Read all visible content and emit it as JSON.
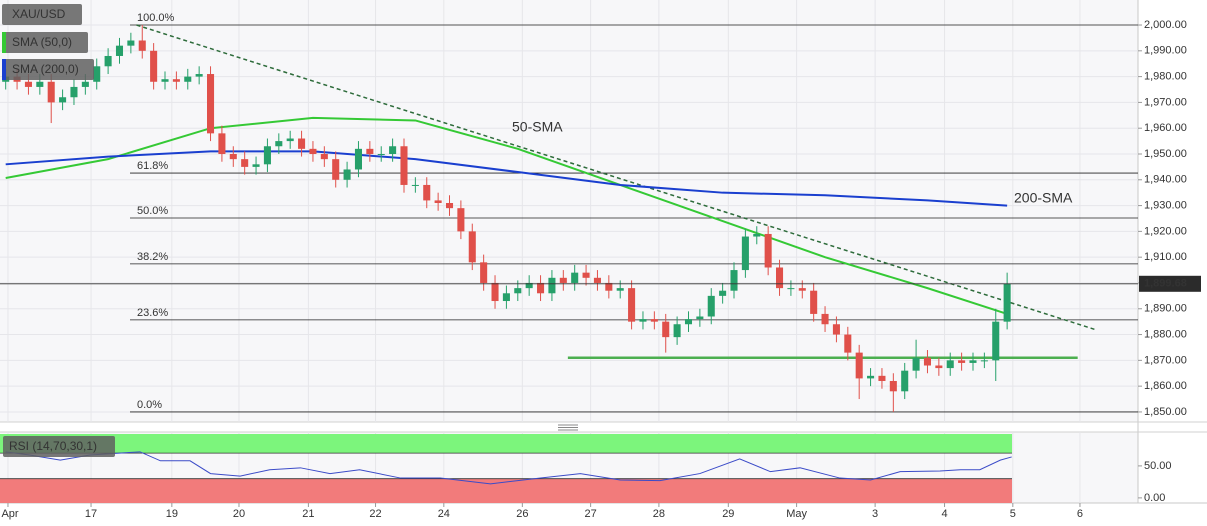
{
  "chart_data": [
    {
      "type": "candlestick",
      "title": "XAU/USD",
      "xlim": [
        -0.5,
        99.5
      ],
      "xticks": [
        {
          "value": 0.2,
          "label": "Apr"
        },
        {
          "value": 7.5,
          "label": "17"
        },
        {
          "value": 14.6,
          "label": "19"
        },
        {
          "value": 20.5,
          "label": "20"
        },
        {
          "value": 26.6,
          "label": "21"
        },
        {
          "value": 32.5,
          "label": "22"
        },
        {
          "value": 38.5,
          "label": "24"
        },
        {
          "value": 45.4,
          "label": "26"
        },
        {
          "value": 51.4,
          "label": "27"
        },
        {
          "value": 57.4,
          "label": "28"
        },
        {
          "value": 63.5,
          "label": "29"
        },
        {
          "value": 69.5,
          "label": "May"
        },
        {
          "value": 76.4,
          "label": "3"
        },
        {
          "value": 82.5,
          "label": "4"
        },
        {
          "value": 88.5,
          "label": "5"
        },
        {
          "value": 94.4,
          "label": "6"
        }
      ],
      "ylim": [
        1846.1,
        2009.7
      ],
      "yticks": [
        {
          "value": 1850,
          "label": "1,850.00"
        },
        {
          "value": 1860,
          "label": "1,860.00"
        },
        {
          "value": 1870,
          "label": "1,870.00"
        },
        {
          "value": 1880,
          "label": "1,880.00"
        },
        {
          "value": 1890,
          "label": "1,890.00"
        },
        {
          "value": 1900,
          "label": "1,900.00"
        },
        {
          "value": 1910,
          "label": "1,910.00"
        },
        {
          "value": 1920,
          "label": "1,920.00"
        },
        {
          "value": 1930,
          "label": "1,930.00"
        },
        {
          "value": 1940,
          "label": "1,940.00"
        },
        {
          "value": 1950,
          "label": "1,950.00"
        },
        {
          "value": 1960,
          "label": "1,960.00"
        },
        {
          "value": 1970,
          "label": "1,970.00"
        },
        {
          "value": 1980,
          "label": "1,980.00"
        },
        {
          "value": 1990,
          "label": "1,990.00"
        },
        {
          "value": 2000,
          "label": "2,000.00"
        }
      ],
      "grid": true,
      "up_color": "#26a06a",
      "down_color": "#e0504a",
      "x": [
        0,
        1,
        2,
        3,
        4,
        5,
        6,
        7,
        8,
        9,
        10,
        11,
        12,
        13,
        14,
        15,
        16,
        17,
        18,
        19,
        20,
        21,
        22,
        23,
        24,
        25,
        26,
        27,
        28,
        29,
        30,
        31,
        32,
        33,
        34,
        35,
        36,
        37,
        38,
        39,
        40,
        41,
        42,
        43,
        44,
        45,
        46,
        47,
        48,
        49,
        50,
        51,
        52,
        53,
        54,
        55,
        56,
        57,
        58,
        59,
        60,
        61,
        62,
        63,
        64,
        65,
        66,
        67,
        68,
        69,
        70,
        71,
        72,
        73,
        74,
        75,
        76,
        77,
        78,
        79,
        80,
        81,
        82,
        83,
        84,
        85,
        86,
        87,
        88
      ],
      "open": [
        1978,
        1980,
        1978,
        1976,
        1978,
        1970,
        1972,
        1976,
        1978,
        1984,
        1988,
        1992,
        1994,
        1990,
        1978,
        1979,
        1978,
        1980,
        1981,
        1958,
        1950,
        1948,
        1945,
        1946,
        1953,
        1955,
        1956,
        1952,
        1950,
        1948,
        1940,
        1944,
        1952,
        1950,
        1950,
        1953,
        1938,
        1938,
        1932,
        1931,
        1929,
        1920,
        1908,
        1900,
        1893,
        1896,
        1898,
        1900,
        1896,
        1902,
        1900,
        1904,
        1902,
        1900,
        1897,
        1898,
        1885,
        1886,
        1885,
        1879,
        1884,
        1886,
        1887,
        1895,
        1897,
        1905,
        1918,
        1919,
        1906,
        1898,
        1898,
        1897,
        1888,
        1884,
        1880,
        1873,
        1863,
        1864,
        1862,
        1858,
        1866,
        1871,
        1868,
        1867,
        1870,
        1869,
        1870,
        1870,
        1885
      ],
      "high": [
        1983,
        1983,
        1981,
        1981,
        1981,
        1975,
        1979,
        1981,
        1987,
        1991,
        1995,
        1997,
        2000,
        1993,
        1982,
        1982,
        1983,
        1984,
        1984,
        1961,
        1953,
        1951,
        1949,
        1956,
        1958,
        1959,
        1959,
        1955,
        1953,
        1951,
        1947,
        1955,
        1955,
        1953,
        1956,
        1956,
        1941,
        1941,
        1935,
        1934,
        1932,
        1923,
        1911,
        1903,
        1899,
        1901,
        1903,
        1903,
        1905,
        1905,
        1907,
        1907,
        1905,
        1903,
        1901,
        1901,
        1889,
        1889,
        1888,
        1887,
        1889,
        1890,
        1898,
        1900,
        1908,
        1921,
        1922,
        1922,
        1909,
        1901,
        1901,
        1900,
        1891,
        1887,
        1883,
        1876,
        1867,
        1867,
        1865,
        1869,
        1878,
        1874,
        1871,
        1873,
        1873,
        1873,
        1873,
        1890,
        1904
      ],
      "low": [
        1975,
        1975,
        1973,
        1973,
        1962,
        1967,
        1969,
        1973,
        1975,
        1981,
        1985,
        1989,
        1987,
        1975,
        1975,
        1975,
        1975,
        1977,
        1955,
        1947,
        1945,
        1942,
        1942,
        1943,
        1950,
        1952,
        1949,
        1947,
        1945,
        1937,
        1937,
        1941,
        1947,
        1947,
        1947,
        1935,
        1935,
        1929,
        1928,
        1926,
        1917,
        1905,
        1897,
        1890,
        1890,
        1893,
        1895,
        1893,
        1893,
        1897,
        1897,
        1899,
        1897,
        1894,
        1894,
        1882,
        1882,
        1882,
        1873,
        1876,
        1881,
        1883,
        1884,
        1892,
        1894,
        1902,
        1915,
        1903,
        1895,
        1895,
        1894,
        1885,
        1881,
        1877,
        1870,
        1855,
        1860,
        1859,
        1850,
        1855,
        1863,
        1865,
        1864,
        1864,
        1866,
        1866,
        1867,
        1862,
        1882
      ],
      "close": [
        1980,
        1978,
        1976,
        1978,
        1970,
        1972,
        1976,
        1978,
        1984,
        1988,
        1992,
        1994,
        1990,
        1978,
        1979,
        1978,
        1980,
        1981,
        1958,
        1950,
        1948,
        1945,
        1946,
        1953,
        1955,
        1956,
        1952,
        1950,
        1948,
        1940,
        1944,
        1952,
        1950,
        1950,
        1953,
        1938,
        1938,
        1932,
        1931,
        1929,
        1920,
        1908,
        1900,
        1893,
        1896,
        1898,
        1900,
        1896,
        1902,
        1900,
        1904,
        1902,
        1900,
        1897,
        1898,
        1885,
        1886,
        1885,
        1879,
        1884,
        1886,
        1887,
        1895,
        1897,
        1905,
        1918,
        1919,
        1906,
        1898,
        1898,
        1897,
        1888,
        1884,
        1880,
        1873,
        1863,
        1864,
        1862,
        1858,
        1866,
        1871,
        1868,
        1867,
        1870,
        1869,
        1870,
        1870,
        1885,
        1899.68
      ],
      "series": [
        {
          "name": "SMA (50,0)",
          "label": "50-SMA",
          "color": "#35c935",
          "x": [
            0,
            9,
            18,
            27,
            36,
            45,
            54,
            63,
            72,
            81,
            88
          ],
          "values": [
            1940.7,
            1948,
            1960,
            1964,
            1963,
            1952,
            1938,
            1924,
            1910,
            1898,
            1888
          ]
        },
        {
          "name": "SMA (200,0)",
          "label": "200-SMA",
          "color": "#1a3fcf",
          "x": [
            0,
            9,
            18,
            27,
            36,
            45,
            54,
            63,
            72,
            81,
            88
          ],
          "values": [
            1946,
            1949,
            1951,
            1951,
            1948,
            1943,
            1938,
            1935,
            1934,
            1932,
            1930
          ]
        }
      ],
      "levels": [
        {
          "label": "100.0%",
          "value": 2000
        },
        {
          "label": "61.8%",
          "value": 1942.6
        },
        {
          "label": "50.0%",
          "value": 1925.2
        },
        {
          "label": "38.2%",
          "value": 1907.4
        },
        {
          "label": "23.6%",
          "value": 1885.7
        },
        {
          "label": "0.0%",
          "value": 1850
        }
      ],
      "trendline": {
        "color": "#2d6b3a",
        "x": [
          11.5,
          95.7
        ],
        "values": [
          2000,
          1882
        ]
      },
      "support": {
        "color": "#4caf50",
        "x": [
          49.4,
          94.2
        ],
        "values": [
          1871,
          1871
        ]
      },
      "last": {
        "value": 1899.68,
        "label": "1,899.68"
      }
    },
    {
      "type": "line",
      "title": "RSI (14,70,30,1)",
      "ylim": [
        -8,
        103
      ],
      "yticks": [
        {
          "value": 0,
          "label": "0.00"
        },
        {
          "value": 50,
          "label": "50.00"
        }
      ],
      "overbought": 70,
      "oversold": 30,
      "overbought_color": "#7cf57c",
      "oversold_color": "#f27b7b",
      "series": [
        {
          "color": "#3b4bc8",
          "x": [
            0,
            2.1,
            4.8,
            7.4,
            10.0,
            11.8,
            13.6,
            16.2,
            18.0,
            20.6,
            23.2,
            25.9,
            28.5,
            31.1,
            34.7,
            38.2,
            42.6,
            47.0,
            50.5,
            54.0,
            57.5,
            61.0,
            64.5,
            67.2,
            69.8,
            73.3,
            76.0,
            78.6,
            82.1,
            83.9,
            85.6,
            87.4,
            88.4
          ],
          "values": [
            72,
            67,
            59,
            67,
            70,
            72,
            58,
            58,
            38,
            34,
            44,
            47,
            38,
            44,
            31,
            31,
            22,
            31,
            38,
            28,
            27,
            38,
            61,
            41,
            47,
            31,
            28,
            41,
            42,
            44,
            44,
            59,
            64
          ]
        }
      ]
    }
  ]
}
